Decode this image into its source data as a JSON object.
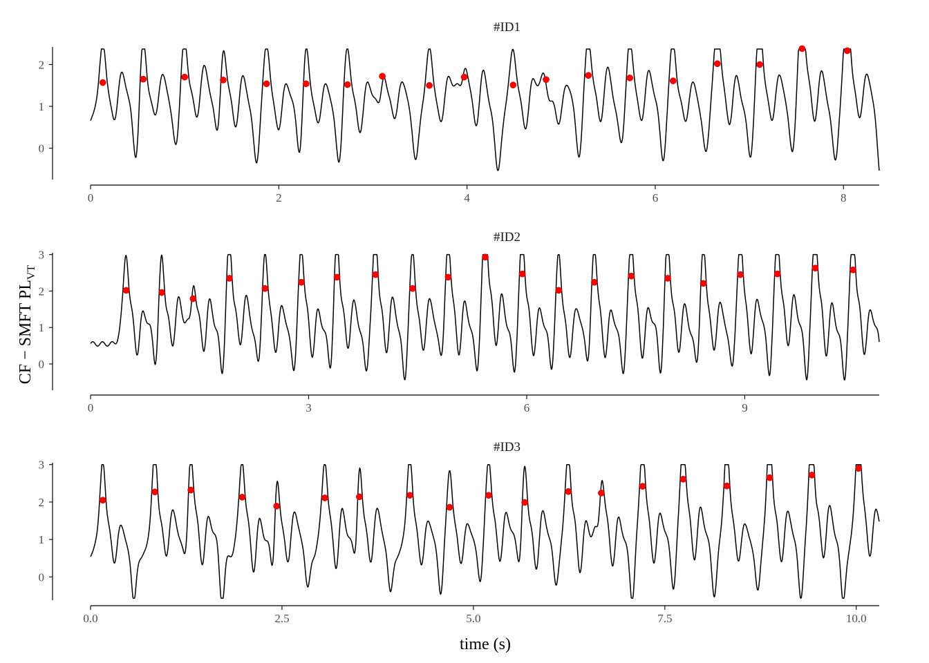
{
  "figure": {
    "ylabel_main": "CF −  SMFT PL",
    "ylabel_sub": "VT",
    "xlabel": "time (s)"
  },
  "colors": {
    "signal": "#000000",
    "peaks": "#ff0000",
    "background": "#ffffff"
  },
  "chart_data": [
    {
      "type": "line",
      "title": "#ID1",
      "xlim": [
        0,
        8.38
      ],
      "ylim": [
        -0.75,
        2.42
      ],
      "xticks": [
        0,
        2,
        4,
        6,
        8
      ],
      "xtick_labels": [
        "0",
        "2",
        "4",
        "6",
        "8"
      ],
      "yticks": [
        0,
        1,
        2
      ],
      "ytick_labels": [
        "0",
        "1",
        "2"
      ],
      "beat_period": 0.455,
      "peaks": [
        {
          "x": 0.13,
          "y": 1.57
        },
        {
          "x": 0.56,
          "y": 1.65
        },
        {
          "x": 1.0,
          "y": 1.7
        },
        {
          "x": 1.41,
          "y": 1.63
        },
        {
          "x": 1.87,
          "y": 1.54
        },
        {
          "x": 2.29,
          "y": 1.54
        },
        {
          "x": 2.73,
          "y": 1.52
        },
        {
          "x": 3.1,
          "y": 1.72
        },
        {
          "x": 3.6,
          "y": 1.5
        },
        {
          "x": 3.97,
          "y": 1.7
        },
        {
          "x": 4.49,
          "y": 1.51
        },
        {
          "x": 4.84,
          "y": 1.64
        },
        {
          "x": 5.29,
          "y": 1.74
        },
        {
          "x": 5.73,
          "y": 1.68
        },
        {
          "x": 6.19,
          "y": 1.61
        },
        {
          "x": 6.66,
          "y": 2.02
        },
        {
          "x": 7.11,
          "y": 2.0
        },
        {
          "x": 7.56,
          "y": 2.38
        },
        {
          "x": 8.04,
          "y": 2.33
        }
      ]
    },
    {
      "type": "line",
      "title": "#ID2",
      "xlim": [
        0,
        10.85
      ],
      "ylim": [
        -0.72,
        3.05
      ],
      "xticks": [
        0,
        3,
        6,
        9
      ],
      "xtick_labels": [
        "0",
        "3",
        "6",
        "9"
      ],
      "yticks": [
        0,
        1,
        2,
        3
      ],
      "ytick_labels": [
        "0",
        "1",
        "2",
        "3"
      ],
      "beat_period": 0.52,
      "peaks": [
        {
          "x": 0.49,
          "y": 2.02
        },
        {
          "x": 0.98,
          "y": 1.96
        },
        {
          "x": 1.41,
          "y": 1.79
        },
        {
          "x": 1.91,
          "y": 2.35
        },
        {
          "x": 2.4,
          "y": 2.07
        },
        {
          "x": 2.9,
          "y": 2.24
        },
        {
          "x": 3.39,
          "y": 2.38
        },
        {
          "x": 3.92,
          "y": 2.45
        },
        {
          "x": 4.43,
          "y": 2.07
        },
        {
          "x": 4.92,
          "y": 2.38
        },
        {
          "x": 5.43,
          "y": 2.93
        },
        {
          "x": 5.94,
          "y": 2.47
        },
        {
          "x": 6.44,
          "y": 2.02
        },
        {
          "x": 6.93,
          "y": 2.24
        },
        {
          "x": 7.44,
          "y": 2.41
        },
        {
          "x": 7.94,
          "y": 2.35
        },
        {
          "x": 8.43,
          "y": 2.21
        },
        {
          "x": 8.94,
          "y": 2.45
        },
        {
          "x": 9.45,
          "y": 2.47
        },
        {
          "x": 9.97,
          "y": 2.63
        },
        {
          "x": 10.49,
          "y": 2.58
        }
      ]
    },
    {
      "type": "line",
      "title": "#ID3",
      "xlim": [
        0,
        10.3
      ],
      "ylim": [
        -0.62,
        3.05
      ],
      "xticks": [
        0,
        2.5,
        5,
        7.5,
        10
      ],
      "xtick_labels": [
        "0.0",
        "2.5",
        "5.0",
        "7.5",
        "10.0"
      ],
      "yticks": [
        0,
        1,
        2,
        3
      ],
      "ytick_labels": [
        "0",
        "1",
        "2",
        "3"
      ],
      "beat_period": 0.52,
      "peaks": [
        {
          "x": 0.16,
          "y": 2.05
        },
        {
          "x": 0.84,
          "y": 2.27
        },
        {
          "x": 1.31,
          "y": 2.32
        },
        {
          "x": 1.98,
          "y": 2.13
        },
        {
          "x": 2.43,
          "y": 1.89
        },
        {
          "x": 3.06,
          "y": 2.11
        },
        {
          "x": 3.51,
          "y": 2.14
        },
        {
          "x": 4.17,
          "y": 2.18
        },
        {
          "x": 4.69,
          "y": 1.86
        },
        {
          "x": 5.2,
          "y": 2.18
        },
        {
          "x": 5.67,
          "y": 1.99
        },
        {
          "x": 6.24,
          "y": 2.28
        },
        {
          "x": 6.67,
          "y": 2.24
        },
        {
          "x": 7.21,
          "y": 2.42
        },
        {
          "x": 7.74,
          "y": 2.61
        },
        {
          "x": 8.31,
          "y": 2.43
        },
        {
          "x": 8.87,
          "y": 2.65
        },
        {
          "x": 9.42,
          "y": 2.72
        },
        {
          "x": 10.03,
          "y": 2.9
        }
      ]
    }
  ]
}
